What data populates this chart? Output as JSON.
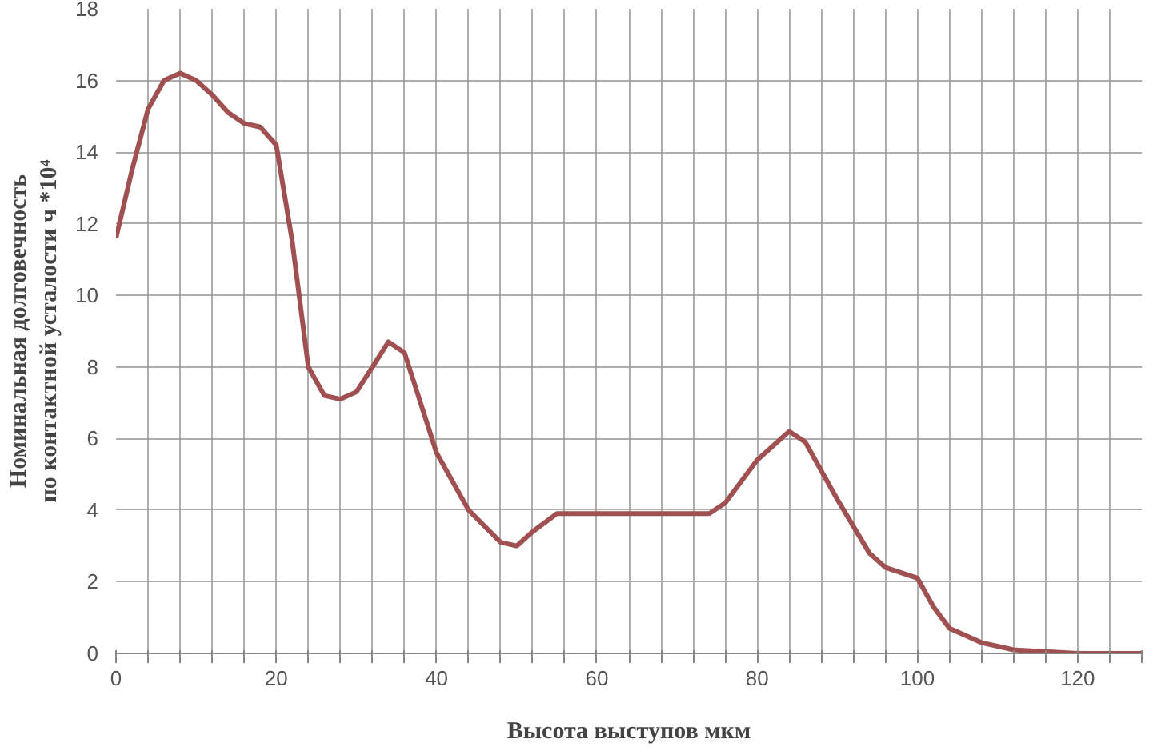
{
  "chart_data": {
    "type": "line",
    "xlabel": "Высота выступов мкм",
    "ylabel": "Номинальная долговечность\nпо контактной усталости ч *10⁴",
    "x": [
      0,
      2,
      4,
      6,
      8,
      10,
      12,
      14,
      16,
      18,
      20,
      22,
      24,
      26,
      28,
      30,
      32,
      34,
      36,
      38,
      40,
      44,
      48,
      50,
      52,
      55,
      60,
      70,
      74,
      76,
      80,
      84,
      86,
      90,
      94,
      96,
      100,
      102,
      104,
      108,
      112,
      116,
      120,
      128
    ],
    "series": [
      {
        "color": "#a05050",
        "values": [
          11.6,
          13.5,
          15.2,
          16.0,
          16.2,
          16.0,
          15.6,
          15.1,
          14.8,
          14.7,
          14.2,
          11.5,
          8.0,
          7.2,
          7.1,
          7.3,
          8.0,
          8.7,
          8.4,
          7.0,
          5.6,
          4.0,
          3.1,
          3.0,
          3.4,
          3.9,
          3.9,
          3.9,
          3.9,
          4.2,
          5.4,
          6.2,
          5.9,
          4.3,
          2.8,
          2.4,
          2.1,
          1.3,
          0.7,
          0.3,
          0.1,
          0.05,
          0,
          0
        ]
      }
    ],
    "xlim": [
      0,
      128
    ],
    "xticks": [
      0,
      {
        "value": 4,
        "label": null
      },
      {
        "value": 8,
        "label": null
      },
      {
        "value": 12,
        "label": null
      },
      {
        "value": 16,
        "label": null
      },
      20,
      {
        "value": 24,
        "label": null
      },
      {
        "value": 28,
        "label": null
      },
      {
        "value": 32,
        "label": null
      },
      {
        "value": 36,
        "label": null
      },
      40,
      {
        "value": 44,
        "label": null
      },
      {
        "value": 48,
        "label": null
      },
      {
        "value": 52,
        "label": null
      },
      {
        "value": 56,
        "label": null
      },
      60,
      {
        "value": 64,
        "label": null
      },
      {
        "value": 68,
        "label": null
      },
      {
        "value": 72,
        "label": null
      },
      {
        "value": 76,
        "label": null
      },
      80,
      {
        "value": 84,
        "label": null
      },
      {
        "value": 88,
        "label": null
      },
      {
        "value": 92,
        "label": null
      },
      {
        "value": 96,
        "label": null
      },
      100,
      {
        "value": 104,
        "label": null
      },
      {
        "value": 108,
        "label": null
      },
      {
        "value": 112,
        "label": null
      },
      {
        "value": 116,
        "label": null
      },
      120,
      {
        "value": 124,
        "label": null
      },
      {
        "value": 128,
        "label": null
      }
    ],
    "ylim": [
      0,
      18
    ],
    "yticks": [
      0,
      2,
      4,
      6,
      8,
      10,
      12,
      14,
      16,
      18
    ],
    "grid": true,
    "marker": "none",
    "line_style": "solid"
  }
}
